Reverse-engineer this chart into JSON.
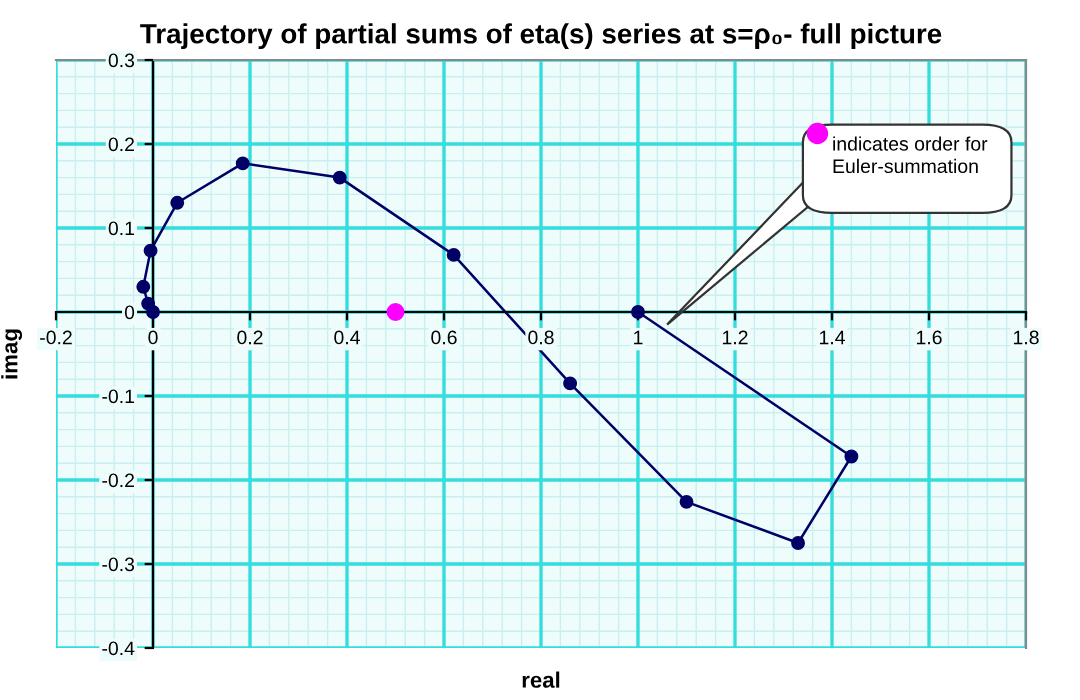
{
  "chart_data": {
    "type": "line",
    "title": "Trajectory of partial sums of eta(s) series at s=ρ₀- full picture",
    "xlabel": "real",
    "ylabel": "imag",
    "series": [
      {
        "color": "#000066",
        "marker": "circle",
        "x": [
          1.0,
          1.44,
          1.33,
          1.1,
          0.86,
          0.62,
          0.385,
          0.185,
          0.05,
          -0.005,
          -0.02,
          -0.01,
          0.0
        ],
        "values": [
          0.0,
          -0.172,
          -0.275,
          -0.226,
          -0.085,
          0.068,
          0.16,
          0.177,
          0.13,
          0.073,
          0.03,
          0.01,
          0.0
        ]
      },
      {
        "type": "scatter",
        "color": "#ff00ff",
        "marker": "circle",
        "x": [
          0.5
        ],
        "values": [
          0.0
        ]
      }
    ],
    "annotations": [
      "indicates order for Euler-summation"
    ],
    "xlim": [
      -0.2,
      1.8
    ],
    "xticks": [
      -0.2,
      0,
      0.2,
      0.4,
      0.6,
      0.8,
      1,
      1.2,
      1.4,
      1.6,
      1.8
    ],
    "ylim": [
      -0.4,
      0.3
    ],
    "yticks": [
      -0.4,
      -0.3,
      -0.2,
      -0.1,
      0,
      0.1,
      0.2,
      0.3
    ],
    "grid": true
  }
}
